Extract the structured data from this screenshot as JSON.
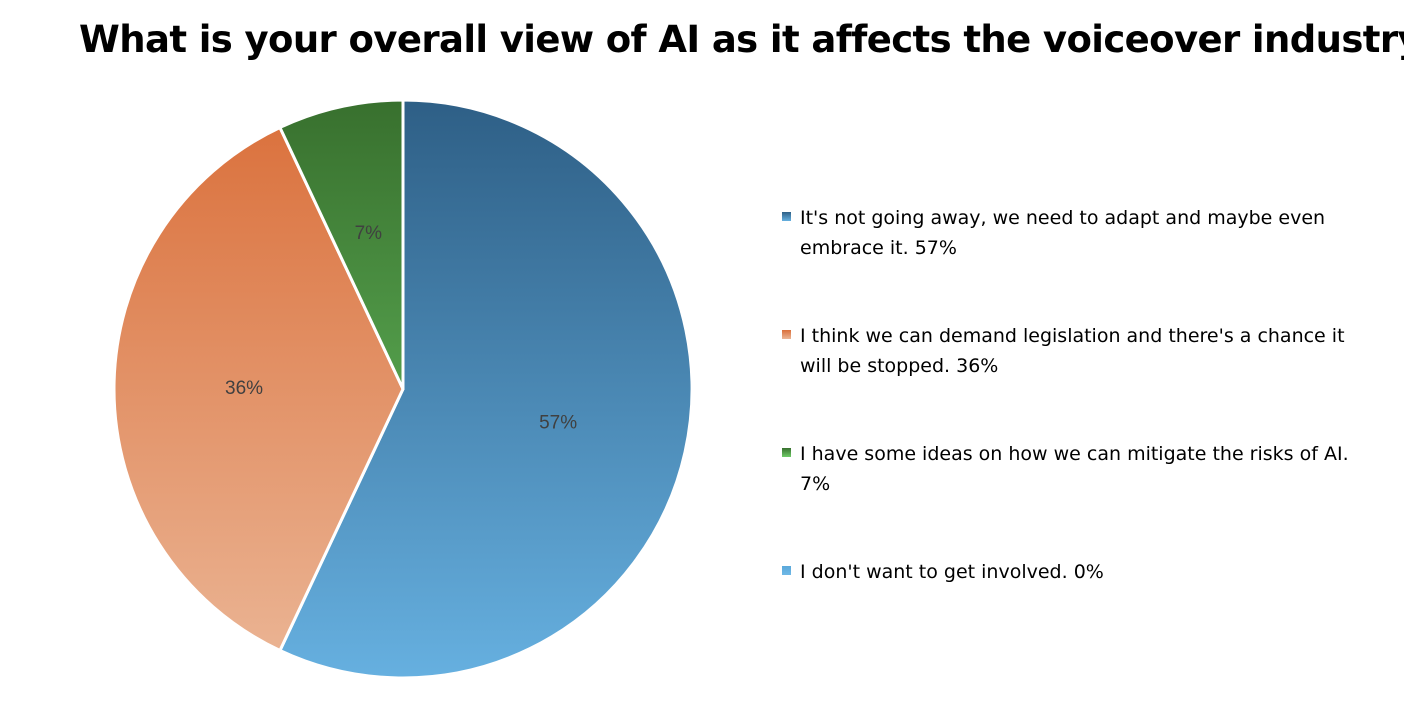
{
  "chart_data": {
    "type": "pie",
    "title": "What is your overall view of AI as it affects the voiceover industry?",
    "slices": [
      {
        "label": "It's not going away, we need to adapt and maybe even embrace it. 57%",
        "value": 57,
        "data_label": "57%",
        "color_top": "#2e5f86",
        "color_bottom": "#66b0e0"
      },
      {
        "label": "I think we can demand legislation and there's a chance it will be stopped. 36%",
        "value": 36,
        "data_label": "36%",
        "color_top": "#da6f3a",
        "color_bottom": "#ebb696"
      },
      {
        "label": "I have some ideas on how we can mitigate the risks of AI. 7%",
        "value": 7,
        "data_label": "7%",
        "color_top": "#38702e",
        "color_bottom": "#6fcc68"
      },
      {
        "label": "I don't want to get involved. 0%",
        "value": 0,
        "data_label": "",
        "color_top": "#5aa8da",
        "color_bottom": "#6fb8e6"
      }
    ],
    "legend_position": "right",
    "start_angle_deg": 0,
    "direction": "clockwise"
  }
}
